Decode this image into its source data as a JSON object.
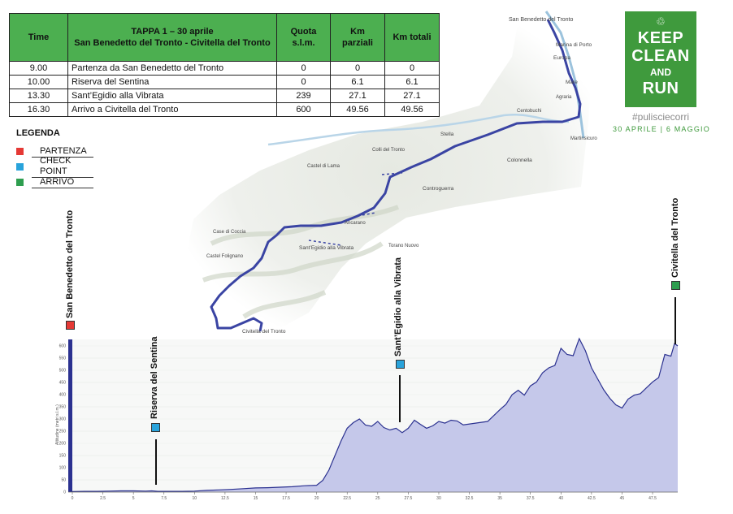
{
  "table": {
    "headers": {
      "time": "Time",
      "stage_line1": "TAPPA 1 – 30 aprile",
      "stage_line2": "San Benedetto del Tronto - Civitella del Tronto",
      "altitude_line1": "Quota",
      "altitude_line2": "s.l.m.",
      "km_partial": "Km parziali",
      "km_total": "Km totali"
    },
    "rows": [
      {
        "time": "9.00",
        "place": "Partenza da San Benedetto del Tronto",
        "altitude": "0",
        "km_partial": "0",
        "km_total": "0"
      },
      {
        "time": "10.00",
        "place": "Riserva del Sentina",
        "altitude": "0",
        "km_partial": "6.1",
        "km_total": "6.1"
      },
      {
        "time": "13.30",
        "place": "Sant’Egidio alla Vibrata",
        "altitude": "239",
        "km_partial": "27.1",
        "km_total": "27.1"
      },
      {
        "time": "16.30",
        "place": "Arrivo a Civitella del Tronto",
        "altitude": "600",
        "km_partial": "49.56",
        "km_total": "49.56"
      }
    ]
  },
  "legend": {
    "title": "LEGENDA",
    "items": [
      {
        "label": "PARTENZA",
        "color": "#e53935"
      },
      {
        "label": "CHECK POINT",
        "color": "#29a3db"
      },
      {
        "label": "ARRIVO",
        "color": "#2e9e4f"
      }
    ]
  },
  "logo": {
    "symbol": "♲",
    "line1": "KEEP",
    "line2": "CLEAN",
    "line3": "AND",
    "line4": "RUN",
    "hashtag": "#pulisciecorri",
    "dates": "30 APRILE | 6 MAGGIO",
    "color": "#3f9a3d"
  },
  "map": {
    "route_color": "#3a44a3",
    "places": [
      "San Benedetto del Tronto",
      "Marina di Porto",
      "Europa",
      "Mare",
      "Agraria",
      "Centobuchi",
      "Martinsicuro",
      "Stella",
      "Colli del Tronto",
      "Colonnella",
      "Castel di Lama",
      "Controguerra",
      "Ancarano",
      "Case di Coccia",
      "Sant’Egidio alla Vibrata",
      "Torano Nuovo",
      "Castel Folignano",
      "Civitella del Tronto"
    ]
  },
  "profile": {
    "markers": [
      {
        "label": "San Benedetto del Tronto",
        "km": 0,
        "color": "#e53935"
      },
      {
        "label": "Riserva del Sentina",
        "km": 6.1,
        "color": "#29a3db"
      },
      {
        "label": "Sant’Egidio alla Vibrata",
        "km": 27.1,
        "color": "#29a3db"
      },
      {
        "label": "Civitella del Tronto",
        "km": 49.56,
        "color": "#2e9e4f"
      }
    ],
    "y_axis_label": "Altitudine (metri s.l.m.)",
    "y_ticks": [
      0,
      50,
      100,
      150,
      200,
      250,
      300,
      350,
      400,
      450,
      500,
      550,
      600
    ],
    "x_ticks": [
      "0",
      "2.5",
      "5",
      "7.5",
      "10",
      "12.5",
      "15",
      "17.5",
      "20",
      "22.5",
      "25",
      "27.5",
      "30",
      "32.5",
      "35",
      "37.5",
      "40",
      "42.5",
      "45",
      "47.5"
    ],
    "x_range_km": [
      0,
      49.56
    ],
    "y_range_m": [
      0,
      620
    ],
    "fill_color": "#c5c8ea",
    "line_color": "#2b3190",
    "elevation": [
      [
        0,
        2
      ],
      [
        1,
        3
      ],
      [
        2,
        3
      ],
      [
        3,
        4
      ],
      [
        4,
        5
      ],
      [
        5,
        5
      ],
      [
        6,
        4
      ],
      [
        6.5,
        5
      ],
      [
        7,
        3
      ],
      [
        8,
        3
      ],
      [
        9,
        3
      ],
      [
        10,
        4
      ],
      [
        11,
        7
      ],
      [
        12,
        9
      ],
      [
        13,
        11
      ],
      [
        14,
        14
      ],
      [
        15,
        17
      ],
      [
        16,
        18
      ],
      [
        17,
        20
      ],
      [
        18,
        22
      ],
      [
        19,
        26
      ],
      [
        20,
        28
      ],
      [
        20.5,
        48
      ],
      [
        21,
        90
      ],
      [
        21.5,
        150
      ],
      [
        22,
        210
      ],
      [
        22.5,
        262
      ],
      [
        23,
        285
      ],
      [
        23.5,
        300
      ],
      [
        24,
        275
      ],
      [
        24.5,
        270
      ],
      [
        25,
        290
      ],
      [
        25.5,
        265
      ],
      [
        26,
        255
      ],
      [
        26.5,
        262
      ],
      [
        27,
        244
      ],
      [
        27.5,
        262
      ],
      [
        28,
        295
      ],
      [
        28.5,
        278
      ],
      [
        29,
        262
      ],
      [
        29.5,
        272
      ],
      [
        30,
        290
      ],
      [
        30.5,
        283
      ],
      [
        31,
        295
      ],
      [
        31.5,
        292
      ],
      [
        32,
        276
      ],
      [
        33,
        283
      ],
      [
        34,
        290
      ],
      [
        35,
        338
      ],
      [
        35.5,
        360
      ],
      [
        36,
        400
      ],
      [
        36.5,
        418
      ],
      [
        37,
        398
      ],
      [
        37.5,
        436
      ],
      [
        38,
        452
      ],
      [
        38.5,
        490
      ],
      [
        39,
        510
      ],
      [
        39.5,
        520
      ],
      [
        40,
        590
      ],
      [
        40.5,
        565
      ],
      [
        41,
        560
      ],
      [
        41.5,
        630
      ],
      [
        42,
        580
      ],
      [
        42.5,
        510
      ],
      [
        43,
        465
      ],
      [
        43.5,
        420
      ],
      [
        44,
        385
      ],
      [
        44.5,
        358
      ],
      [
        45,
        345
      ],
      [
        45.5,
        382
      ],
      [
        46,
        398
      ],
      [
        46.5,
        404
      ],
      [
        47,
        428
      ],
      [
        47.5,
        452
      ],
      [
        48,
        470
      ],
      [
        48.5,
        565
      ],
      [
        49,
        558
      ],
      [
        49.3,
        610
      ],
      [
        49.56,
        600
      ]
    ]
  }
}
